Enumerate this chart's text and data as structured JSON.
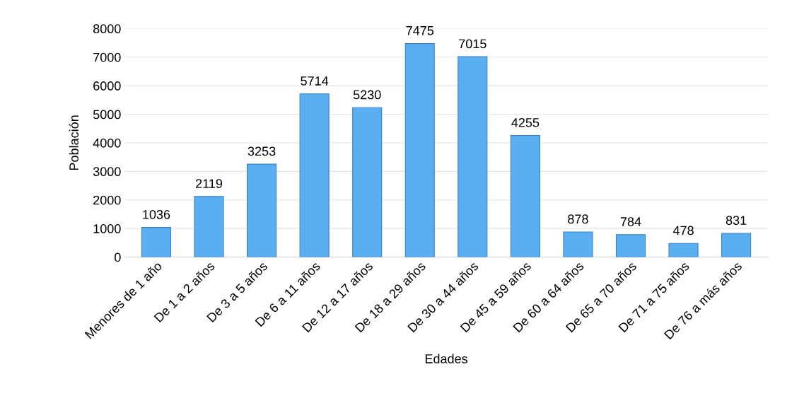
{
  "chart_data": {
    "type": "bar",
    "xlabel": "Edades",
    "ylabel": "Población",
    "categories": [
      "Menores de 1 año",
      "De 1 a 2 años",
      "De 3 a 5 años",
      "De 6 a 11 años",
      "De 12 a 17 años",
      "De 18 a 29 años",
      "De 30 a 44 años",
      "De 45 a 59 años",
      "De 60 a 64 años",
      "De 65 a 70 años",
      "De 71 a 75 años",
      "De 76 a más años"
    ],
    "values": [
      1036,
      2119,
      3253,
      5714,
      5230,
      7475,
      7015,
      4255,
      878,
      784,
      478,
      831
    ],
    "color": "#5aaff0",
    "ylim": [
      0,
      8000
    ],
    "yticks": [
      0,
      1000,
      2000,
      3000,
      4000,
      5000,
      6000,
      7000,
      8000
    ],
    "grid": "y",
    "data_labels": true
  }
}
